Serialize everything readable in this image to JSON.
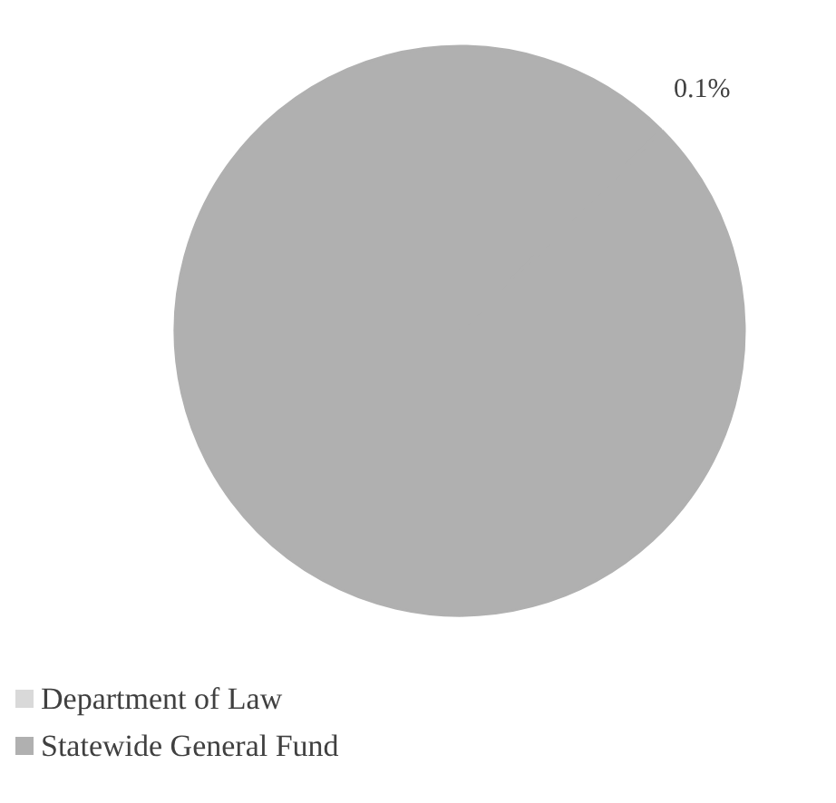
{
  "chart_data": {
    "type": "pie",
    "categories": [
      "Department of Law",
      "Statewide General Fund"
    ],
    "values": [
      0.1,
      99.9
    ],
    "colors": [
      "#d9d9d9",
      "#b0b0b0"
    ],
    "value_labels": [
      "0.1%",
      null
    ],
    "legend": "bottom left"
  }
}
